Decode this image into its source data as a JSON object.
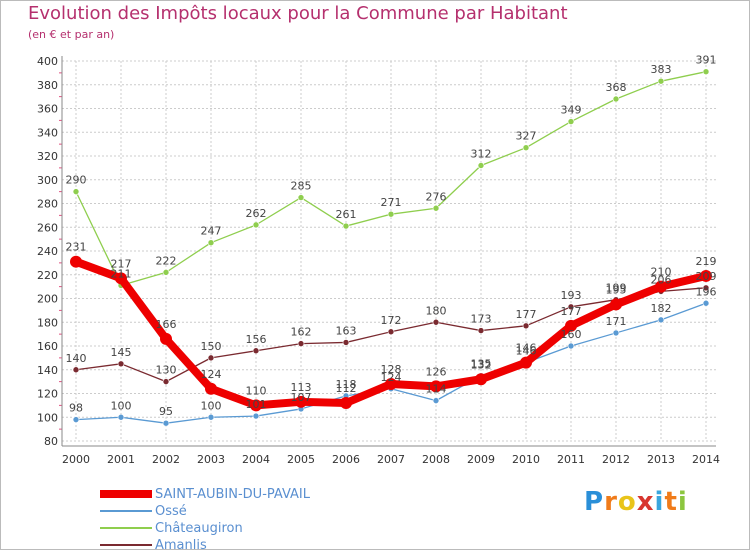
{
  "header": {
    "title": "Evolution des Impôts locaux pour la Commune par Habitant",
    "subtitle": "(en € et par an)"
  },
  "logo": {
    "text": "Proxiti",
    "letters": [
      "P",
      "r",
      "o",
      "x",
      "i",
      "t",
      "i"
    ]
  },
  "chart_data": {
    "type": "line",
    "title": "Evolution des Impôts locaux pour la Commune par Habitant",
    "subtitle": "(en € et par an)",
    "xlabel": "",
    "ylabel": "",
    "ylim": [
      80,
      400
    ],
    "yticks": [
      80,
      100,
      120,
      140,
      160,
      180,
      200,
      220,
      240,
      260,
      280,
      300,
      320,
      340,
      360,
      380,
      400
    ],
    "grid": true,
    "legend": "bottom-left",
    "x": [
      "2000",
      "2001",
      "2002",
      "2003",
      "2004",
      "2005",
      "2006",
      "2007",
      "2008",
      "2009",
      "2010",
      "2011",
      "2012",
      "2013",
      "2014"
    ],
    "series": [
      {
        "name": "Ossé",
        "color": "#5a9ad3",
        "values": [
          98,
          100,
          95,
          100,
          101,
          107,
          118,
          124,
          114,
          135,
          146,
          160,
          171,
          182,
          196
        ],
        "labels": [
          "98",
          "100",
          "95",
          "100",
          "101",
          "107",
          "118",
          "124",
          "114",
          "135",
          "146",
          "160",
          "171",
          "182",
          "196"
        ]
      },
      {
        "name": "Châteaugiron",
        "color": "#8fce4e",
        "values": [
          290,
          211,
          222,
          247,
          262,
          285,
          261,
          271,
          276,
          312,
          327,
          349,
          368,
          383,
          391
        ],
        "labels": [
          "290",
          "211",
          "222",
          "247",
          "262",
          "285",
          "261",
          "271",
          "276",
          "312",
          "327",
          "349",
          "368",
          "383",
          "391"
        ]
      },
      {
        "name": "Amanlis",
        "color": "#7a2a30",
        "values": [
          140,
          145,
          130,
          150,
          156,
          162,
          163,
          172,
          180,
          173,
          177,
          193,
          199,
          206,
          209
        ],
        "labels": [
          "140",
          "145",
          "130",
          "150",
          "156",
          "162",
          "163",
          "172",
          "180",
          "173",
          "177",
          "193",
          "199",
          "206",
          "209"
        ]
      },
      {
        "name": "SAINT-AUBIN-DU-PAVAIL",
        "color": "#ee0000",
        "values": [
          231,
          217,
          166,
          124,
          110,
          113,
          112,
          128,
          126,
          132,
          146,
          177,
          195,
          210,
          219
        ],
        "labels": [
          "231",
          "217",
          "166",
          "124",
          "110",
          "113",
          "112",
          "128",
          "126",
          "132",
          "146",
          "177",
          "195",
          "210",
          "219"
        ]
      }
    ]
  },
  "legend": {
    "items": [
      {
        "label": "SAINT-AUBIN-DU-PAVAIL",
        "color": "#ee0000"
      },
      {
        "label": "Ossé",
        "color": "#5a9ad3"
      },
      {
        "label": "Châteaugiron",
        "color": "#8fce4e"
      },
      {
        "label": "Amanlis",
        "color": "#7a2a30"
      }
    ]
  },
  "colors": {
    "title": "#b5306e",
    "axis_side_ticks": "#e05080",
    "grid": "#cccccc",
    "legend_text": "#5a8fd0",
    "logo": [
      "#2a8fd8",
      "#f07b1a",
      "#e9c41a",
      "#d8362f",
      "#3aa6de",
      "#f07b1a",
      "#8cc63f"
    ]
  }
}
